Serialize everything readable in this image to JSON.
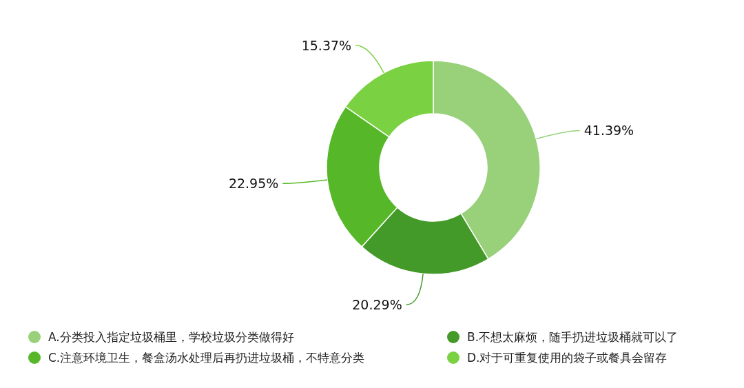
{
  "chart_data": {
    "type": "donut",
    "categories": [
      "A.分类投入指定垃圾桶里，学校垃圾分类做得好",
      "B.不想太麻烦，随手扔进垃圾桶就可以了",
      "C.注意环境卫生，餐盒汤水处理后再扔进垃圾桶，不特意分类",
      "D.对于可重复使用的袋子或餐具会留存"
    ],
    "values": [
      41.39,
      20.29,
      22.95,
      15.37
    ],
    "colors": [
      "#98d17a",
      "#439a28",
      "#56b828",
      "#7ad142"
    ],
    "value_labels": [
      "41.39%",
      "20.29%",
      "22.95%",
      "15.37%"
    ],
    "legend": "bottom"
  }
}
